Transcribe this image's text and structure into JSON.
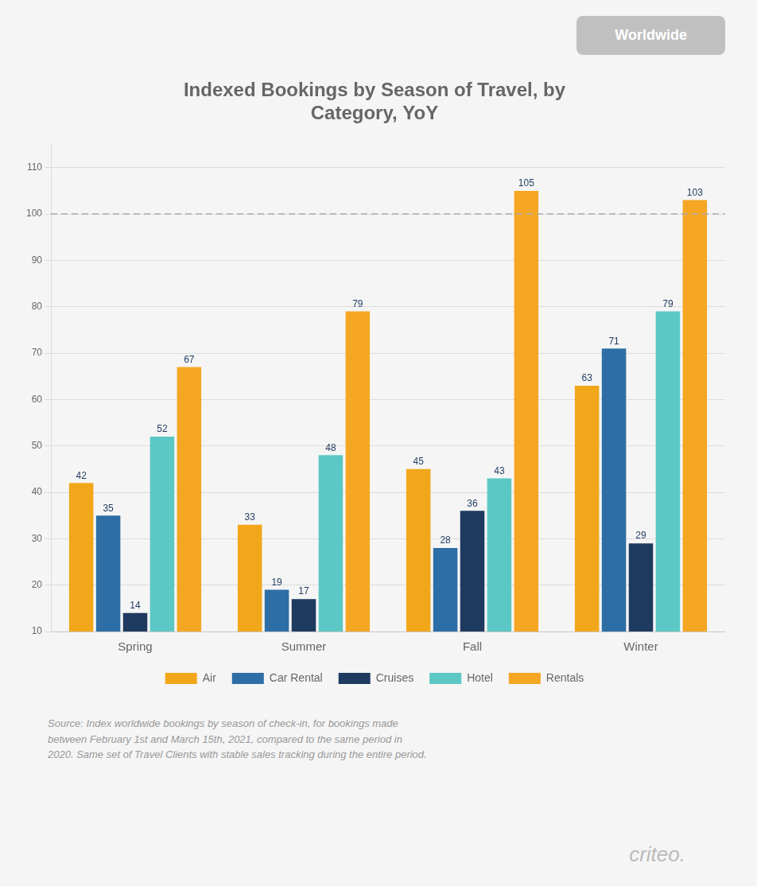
{
  "chart_data": {
    "type": "bar",
    "title": "Indexed Bookings by Season of Travel, by\nCategory, YoY",
    "categories": [
      "Spring",
      "Summer",
      "Fall",
      "Winter"
    ],
    "series": [
      {
        "name": "Air",
        "color": "#F2A71B",
        "values": [
          42,
          33,
          45,
          63
        ]
      },
      {
        "name": "Car Rental",
        "color": "#2E6EA6",
        "values": [
          35,
          19,
          28,
          71
        ]
      },
      {
        "name": "Cruises",
        "color": "#1E3A5F",
        "values": [
          14,
          17,
          36,
          29
        ]
      },
      {
        "name": "Hotel",
        "color": "#5BC8C5",
        "values": [
          52,
          48,
          43,
          79
        ]
      },
      {
        "name": "Rentals",
        "color": "#F5A623",
        "values": [
          67,
          79,
          105,
          103
        ]
      }
    ],
    "ylim": [
      10,
      115
    ],
    "yticks": [
      10,
      20,
      30,
      40,
      50,
      60,
      70,
      80,
      90,
      100,
      110
    ],
    "reference_line": 100,
    "grid": true,
    "legend": "bottom",
    "data_labels": true,
    "annotations": [
      "Worldwide",
      "Source: Index worldwide bookings by season of check-in, for bookings made\nbetween February 1st and March 15th, 2021, compared to the same period in\n2020. Same set of Travel Clients with stable sales tracking during the entire period.",
      "criteo."
    ]
  }
}
